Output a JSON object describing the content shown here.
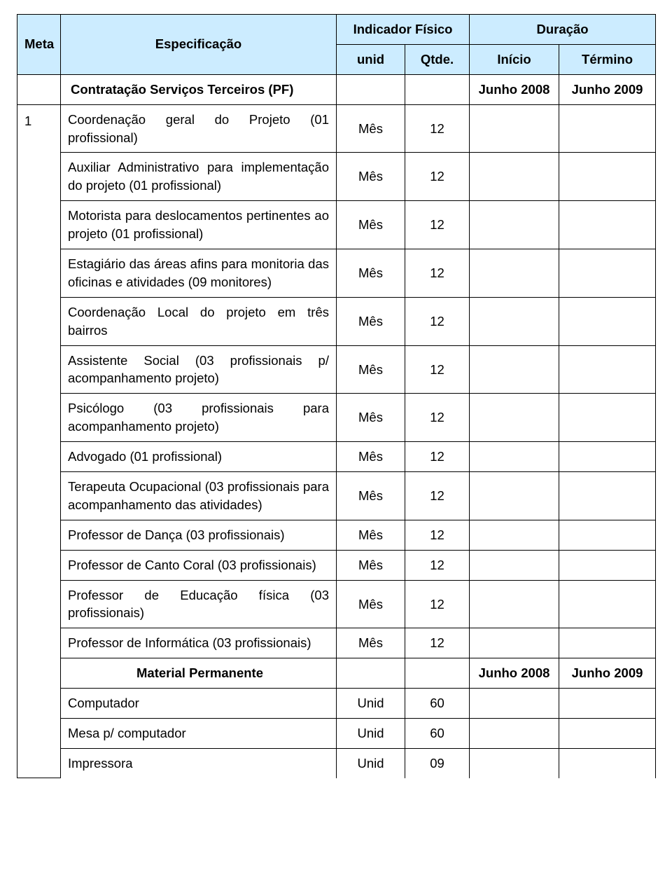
{
  "header": {
    "meta": "Meta",
    "especificacao": "Especificação",
    "indicador_fisico": "Indicador Físico",
    "duracao": "Duração",
    "unid": "unid",
    "qtde": "Qtde.",
    "inicio": "Início",
    "termino": "Término"
  },
  "section1": {
    "title": "Contratação Serviços Terceiros (PF)",
    "inicio": "Junho 2008",
    "termino": "Junho 2009"
  },
  "meta_no": "1",
  "rows": [
    {
      "spec": "Coordenação geral do Projeto (01 profissional)",
      "unid": "Mês",
      "qtde": "12"
    },
    {
      "spec": "Auxiliar Administrativo para implementação do projeto (01 profissional)",
      "unid": "Mês",
      "qtde": "12"
    },
    {
      "spec": "Motorista para deslocamentos pertinentes ao projeto (01 profissional)",
      "unid": "Mês",
      "qtde": "12"
    },
    {
      "spec": "Estagiário das áreas afins para monitoria das oficinas e atividades (09 monitores)",
      "unid": "Mês",
      "qtde": "12"
    },
    {
      "spec": "Coordenação Local do projeto em três bairros",
      "unid": "Mês",
      "qtde": "12"
    },
    {
      "spec": "Assistente Social (03 profissionais p/ acompanhamento projeto)",
      "unid": "Mês",
      "qtde": "12"
    },
    {
      "spec": "Psicólogo (03 profissionais para acompanhamento projeto)",
      "unid": "Mês",
      "qtde": "12"
    },
    {
      "spec": "Advogado (01 profissional)",
      "unid": "Mês",
      "qtde": "12"
    },
    {
      "spec": "Terapeuta Ocupacional (03 profissionais para acompanhamento das atividades)",
      "unid": "Mês",
      "qtde": "12"
    },
    {
      "spec": "Professor de Dança  (03 profissionais)",
      "unid": "Mês",
      "qtde": "12"
    },
    {
      "spec": "Professor de Canto Coral (03 profissionais)",
      "unid": "Mês",
      "qtde": "12"
    },
    {
      "spec": "Professor de Educação física (03 profissionais)",
      "unid": "Mês",
      "qtde": "12"
    },
    {
      "spec": "Professor de Informática (03 profissionais)",
      "unid": "Mês",
      "qtde": "12"
    }
  ],
  "section2": {
    "title": "Material Permanente",
    "inicio": "Junho 2008",
    "termino": "Junho 2009"
  },
  "mp_rows": [
    {
      "spec": "Computador",
      "unid": "Unid",
      "qtde": "60"
    },
    {
      "spec": "Mesa p/ computador",
      "unid": "Unid",
      "qtde": "60"
    },
    {
      "spec": "Impressora",
      "unid": "Unid",
      "qtde": "09"
    }
  ],
  "colors": {
    "header_bg": "#ccecff",
    "border": "#000000",
    "text": "#000000"
  },
  "fonts": {
    "base_pt": 14,
    "family": "Arial"
  }
}
